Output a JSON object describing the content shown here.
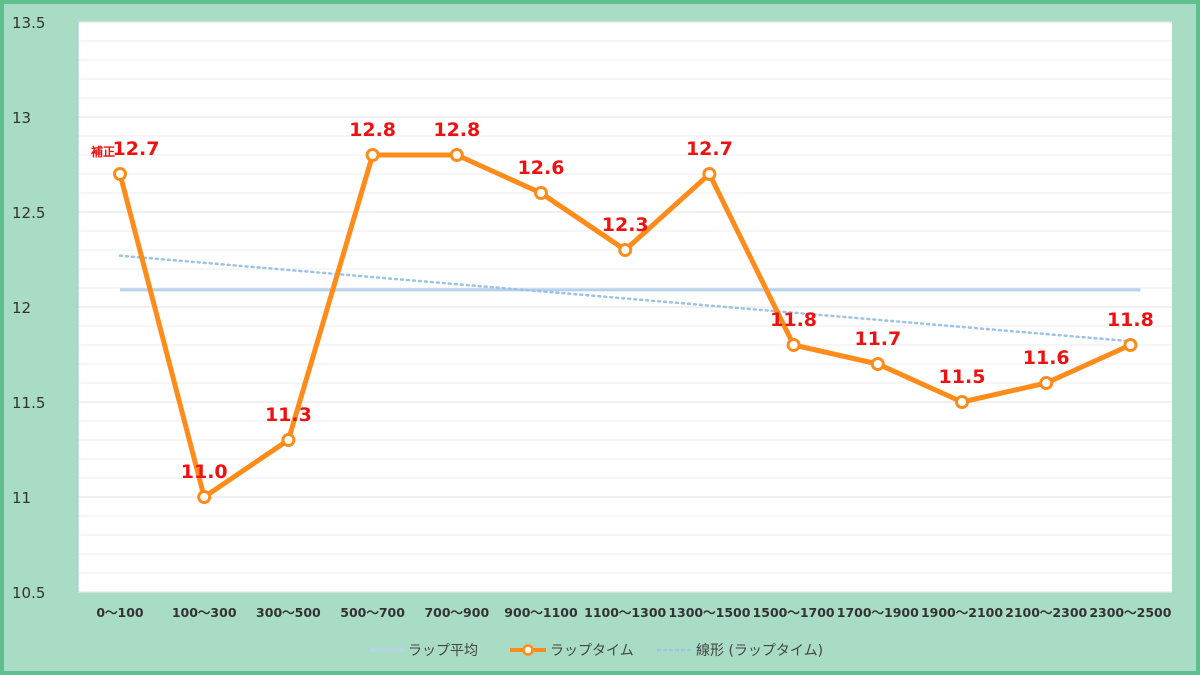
{
  "colors": {
    "frame_bg": "#a8dcc5",
    "frame_border": "#5fbf8f",
    "plot_bg": "#ffffff",
    "grid": "#e6e6e6",
    "series_line": "#ff8c1a",
    "average_line": "#b7d3ec",
    "trend_line": "#9dc3e6",
    "data_label": "#ee1111"
  },
  "chart_data": {
    "type": "line",
    "title": "",
    "xlabel": "",
    "ylabel": "",
    "ylim": [
      10.5,
      13.5
    ],
    "yticks": [
      "10.5",
      "11",
      "11.5",
      "12",
      "12.5",
      "13",
      "13.5"
    ],
    "grid": true,
    "legend_position": "bottom",
    "categories": [
      "0～100",
      "100～300",
      "300～500",
      "500～700",
      "700～900",
      "900～1100",
      "1100～1300",
      "1300～1500",
      "1500～1700",
      "1700～1900",
      "1900～2100",
      "2100～2300",
      "2300～2500"
    ],
    "series": [
      {
        "name": "ラップ平均",
        "style": "solid-light",
        "values": [
          12.09,
          12.09,
          12.09,
          12.09,
          12.09,
          12.09,
          12.09,
          12.09,
          12.09,
          12.09,
          12.09,
          12.09,
          12.09
        ]
      },
      {
        "name": "ラップタイム",
        "style": "line-markers",
        "values": [
          12.7,
          11.0,
          11.3,
          12.8,
          12.8,
          12.6,
          12.3,
          12.7,
          11.8,
          11.7,
          11.5,
          11.6,
          11.8
        ],
        "labels": [
          "12.7",
          "11.0",
          "11.3",
          "12.8",
          "12.8",
          "12.6",
          "12.3",
          "12.7",
          "11.8",
          "11.7",
          "11.5",
          "11.6",
          "11.8"
        ],
        "first_label_prefix": "補正"
      },
      {
        "name": "線形 (ラップタイム)",
        "style": "dotted",
        "start": 12.27,
        "end": 11.82
      }
    ]
  }
}
